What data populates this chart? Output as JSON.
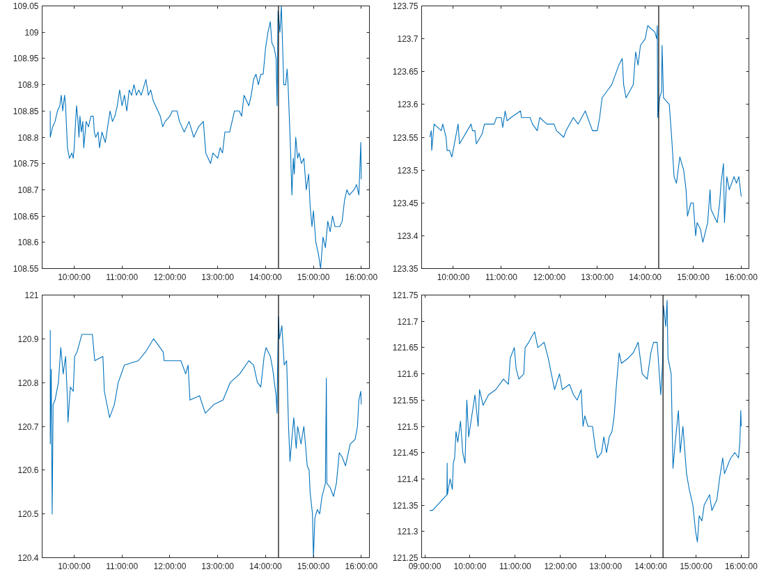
{
  "chart_data": [
    {
      "type": "line",
      "x": [
        9.5,
        9.5,
        9.55,
        9.6,
        9.65,
        9.7,
        9.73,
        9.76,
        9.8,
        9.82,
        9.84,
        9.86,
        9.9,
        9.95,
        9.98,
        10.0,
        10.03,
        10.05,
        10.08,
        10.1,
        10.12,
        10.15,
        10.18,
        10.2,
        10.25,
        10.3,
        10.35,
        10.4,
        10.42,
        10.45,
        10.5,
        10.53,
        10.58,
        10.65,
        10.7,
        10.75,
        10.8,
        10.85,
        10.9,
        10.95,
        11.0,
        11.05,
        11.1,
        11.15,
        11.2,
        11.25,
        11.3,
        11.35,
        11.4,
        11.5,
        11.55,
        11.6,
        11.65,
        11.7,
        11.8,
        11.85,
        11.9,
        12.0,
        12.05,
        12.15,
        12.2,
        12.3,
        12.4,
        12.5,
        12.6,
        12.7,
        12.75,
        12.8,
        12.85,
        12.9,
        13.0,
        13.05,
        13.1,
        13.15,
        13.25,
        13.3,
        13.35,
        13.45,
        13.5,
        13.55,
        13.65,
        13.7,
        13.75,
        13.8,
        13.85,
        13.9,
        13.95,
        14.0,
        14.05,
        14.1,
        14.13,
        14.18,
        14.22,
        14.24,
        14.26,
        14.28,
        14.3,
        14.33,
        14.38,
        14.42,
        14.45,
        14.47,
        14.52,
        14.55,
        14.58,
        14.6,
        14.63,
        14.67,
        14.7,
        14.75,
        14.8,
        14.85,
        14.9,
        14.93,
        14.97,
        15.0,
        15.05,
        15.1,
        15.15,
        15.2,
        15.25,
        15.3,
        15.35,
        15.4,
        15.45,
        15.55,
        15.6,
        15.65,
        15.7,
        15.75,
        15.85,
        15.9,
        15.95,
        15.97,
        15.99,
        16.0
      ],
      "series": [
        {
          "color": "#0072bd",
          "values": [
            108.85,
            108.8,
            108.82,
            108.83,
            108.85,
            108.86,
            108.88,
            108.85,
            108.88,
            108.86,
            108.82,
            108.78,
            108.76,
            108.77,
            108.76,
            108.78,
            108.83,
            108.86,
            108.83,
            108.8,
            108.84,
            108.81,
            108.83,
            108.78,
            108.83,
            108.82,
            108.84,
            108.84,
            108.81,
            108.8,
            108.81,
            108.78,
            108.81,
            108.79,
            108.82,
            108.85,
            108.83,
            108.84,
            108.86,
            108.89,
            108.86,
            108.88,
            108.85,
            108.89,
            108.88,
            108.9,
            108.88,
            108.89,
            108.88,
            108.91,
            108.88,
            108.89,
            108.87,
            108.86,
            108.84,
            108.82,
            108.83,
            108.84,
            108.85,
            108.85,
            108.83,
            108.81,
            108.83,
            108.8,
            108.82,
            108.83,
            108.77,
            108.76,
            108.75,
            108.77,
            108.76,
            108.78,
            108.77,
            108.81,
            108.81,
            108.83,
            108.85,
            108.85,
            108.84,
            108.88,
            108.86,
            108.88,
            108.91,
            108.92,
            108.9,
            108.92,
            108.92,
            108.97,
            109.0,
            109.02,
            108.98,
            108.97,
            108.95,
            108.86,
            109.04,
            109.02,
            109.0,
            109.05,
            108.9,
            108.9,
            108.93,
            108.9,
            108.78,
            108.69,
            108.76,
            108.73,
            108.8,
            108.76,
            108.77,
            108.75,
            108.76,
            108.7,
            108.73,
            108.67,
            108.63,
            108.66,
            108.6,
            108.58,
            108.55,
            108.61,
            108.59,
            108.64,
            108.62,
            108.65,
            108.63,
            108.63,
            108.64,
            108.68,
            108.7,
            108.69,
            108.7,
            108.71,
            108.69,
            108.74,
            108.79,
            108.72
          ]
        }
      ],
      "xlim": [
        9.33,
        16.17
      ],
      "ylim": [
        108.55,
        109.05
      ],
      "xticks": [
        {
          "value": 10,
          "label": "10:00:00"
        },
        {
          "value": 11,
          "label": "11:00:00"
        },
        {
          "value": 12,
          "label": "12:00:00"
        },
        {
          "value": 13,
          "label": "13:00:00"
        },
        {
          "value": 14,
          "label": "14:00:00"
        },
        {
          "value": 15,
          "label": "15:00:00"
        },
        {
          "value": 16,
          "label": "16:00:00"
        }
      ],
      "yticks": [
        108.55,
        108.6,
        108.65,
        108.7,
        108.75,
        108.8,
        108.85,
        108.9,
        108.95,
        109,
        109.05
      ],
      "ref_lines": [
        {
          "axis": "x",
          "value": 14.27,
          "color": "#000000"
        }
      ],
      "grid": false
    },
    {
      "type": "line",
      "x": [
        9.51,
        9.54,
        9.55,
        9.6,
        9.75,
        9.78,
        9.85,
        9.87,
        9.92,
        9.97,
        10.1,
        10.13,
        10.37,
        10.4,
        10.45,
        10.48,
        10.6,
        10.65,
        10.8,
        10.85,
        10.9,
        11.0,
        11.03,
        11.08,
        11.12,
        11.2,
        11.4,
        11.42,
        11.6,
        11.65,
        11.75,
        11.8,
        11.95,
        12.1,
        12.15,
        12.3,
        12.35,
        12.5,
        12.6,
        12.75,
        12.9,
        13.0,
        13.05,
        13.1,
        13.2,
        13.3,
        13.35,
        13.45,
        13.52,
        13.55,
        13.6,
        13.75,
        13.8,
        13.85,
        13.9,
        14.0,
        14.05,
        14.2,
        14.24,
        14.25,
        14.26,
        14.3,
        14.34,
        14.35,
        14.38,
        14.5,
        14.55,
        14.6,
        14.65,
        14.72,
        14.8,
        14.85,
        14.88,
        14.95,
        15.0,
        15.05,
        15.08,
        15.15,
        15.2,
        15.3,
        15.35,
        15.37,
        15.5,
        15.55,
        15.58,
        15.63,
        15.65,
        15.7,
        15.75,
        15.85,
        15.9,
        15.95,
        16.0
      ],
      "series": [
        {
          "color": "#0072bd",
          "values": [
            123.55,
            123.56,
            123.53,
            123.57,
            123.56,
            123.57,
            123.55,
            123.53,
            123.53,
            123.52,
            123.57,
            123.54,
            123.57,
            123.56,
            123.56,
            123.54,
            123.555,
            123.57,
            123.57,
            123.57,
            123.58,
            123.58,
            123.565,
            123.59,
            123.575,
            123.58,
            123.59,
            123.58,
            123.58,
            123.57,
            123.56,
            123.58,
            123.57,
            123.57,
            123.56,
            123.55,
            123.56,
            123.58,
            123.57,
            123.59,
            123.56,
            123.56,
            123.58,
            123.61,
            123.62,
            123.63,
            123.64,
            123.66,
            123.67,
            123.63,
            123.61,
            123.63,
            123.68,
            123.66,
            123.69,
            123.7,
            123.72,
            123.71,
            123.7,
            123.72,
            123.58,
            123.61,
            123.62,
            123.69,
            123.61,
            123.6,
            123.55,
            123.49,
            123.48,
            123.52,
            123.5,
            123.47,
            123.43,
            123.45,
            123.45,
            123.4,
            123.42,
            123.41,
            123.39,
            123.42,
            123.47,
            123.44,
            123.42,
            123.45,
            123.48,
            123.51,
            123.42,
            123.49,
            123.47,
            123.49,
            123.48,
            123.49,
            123.46
          ]
        }
      ],
      "xlim": [
        9.34,
        16.16
      ],
      "ylim": [
        123.35,
        123.75
      ],
      "xticks": [
        {
          "value": 10,
          "label": "10:00:00"
        },
        {
          "value": 11,
          "label": "11:00:00"
        },
        {
          "value": 12,
          "label": "12:00:00"
        },
        {
          "value": 13,
          "label": "13:00:00"
        },
        {
          "value": 14,
          "label": "14:00:00"
        },
        {
          "value": 15,
          "label": "15:00:00"
        },
        {
          "value": 16,
          "label": "16:00:00"
        }
      ],
      "yticks": [
        123.35,
        123.4,
        123.45,
        123.5,
        123.55,
        123.6,
        123.65,
        123.7,
        123.75
      ],
      "ref_lines": [
        {
          "axis": "x",
          "value": 14.28,
          "color": "#000000"
        }
      ],
      "grid": false
    },
    {
      "type": "line",
      "x": [
        9.5,
        9.5,
        9.52,
        9.54,
        9.56,
        9.6,
        9.67,
        9.72,
        9.77,
        9.82,
        9.86,
        9.87,
        9.92,
        9.98,
        10.01,
        10.06,
        10.16,
        10.38,
        10.43,
        10.6,
        10.63,
        10.74,
        10.84,
        10.92,
        11.05,
        11.34,
        11.49,
        11.66,
        11.86,
        11.88,
        12.23,
        12.33,
        12.38,
        12.42,
        12.62,
        12.74,
        12.92,
        13.11,
        13.26,
        13.46,
        13.65,
        13.75,
        13.83,
        13.9,
        13.97,
        14.01,
        14.1,
        14.15,
        14.22,
        14.24,
        14.25,
        14.27,
        14.29,
        14.34,
        14.39,
        14.44,
        14.48,
        14.51,
        14.54,
        14.59,
        14.64,
        14.67,
        14.74,
        14.8,
        14.84,
        14.87,
        14.91,
        14.93,
        14.98,
        15.0,
        15.03,
        15.08,
        15.13,
        15.18,
        15.25,
        15.27,
        15.28,
        15.35,
        15.42,
        15.48,
        15.54,
        15.6,
        15.67,
        15.77,
        15.87,
        15.92,
        15.95,
        15.99,
        16.0
      ],
      "series": [
        {
          "color": "#0072bd",
          "values": [
            120.92,
            120.66,
            120.83,
            120.5,
            120.75,
            120.76,
            120.8,
            120.88,
            120.82,
            120.86,
            120.76,
            120.71,
            120.79,
            120.78,
            120.86,
            120.87,
            120.91,
            120.91,
            120.85,
            120.86,
            120.78,
            120.72,
            120.75,
            120.8,
            120.84,
            120.85,
            120.87,
            120.9,
            120.87,
            120.85,
            120.85,
            120.82,
            120.84,
            120.76,
            120.77,
            120.73,
            120.75,
            120.76,
            120.8,
            120.82,
            120.85,
            120.84,
            120.8,
            120.79,
            120.86,
            120.88,
            120.86,
            120.83,
            120.77,
            120.73,
            120.83,
            120.95,
            120.9,
            120.93,
            120.84,
            120.85,
            120.7,
            120.62,
            120.66,
            120.72,
            120.65,
            120.7,
            120.66,
            120.7,
            120.65,
            120.61,
            120.6,
            120.55,
            120.5,
            120.4,
            120.49,
            120.51,
            120.5,
            120.54,
            120.57,
            120.81,
            120.57,
            120.56,
            120.54,
            120.57,
            120.64,
            120.63,
            120.61,
            120.66,
            120.67,
            120.7,
            120.76,
            120.78,
            120.75
          ]
        }
      ],
      "xlim": [
        9.33,
        16.17
      ],
      "ylim": [
        120.4,
        121
      ],
      "xticks": [
        {
          "value": 10,
          "label": "10:00:00"
        },
        {
          "value": 11,
          "label": "11:00:00"
        },
        {
          "value": 12,
          "label": "12:00:00"
        },
        {
          "value": 13,
          "label": "13:00:00"
        },
        {
          "value": 14,
          "label": "14:00:00"
        },
        {
          "value": 15,
          "label": "15:00:00"
        },
        {
          "value": 16,
          "label": "16:00:00"
        }
      ],
      "yticks": [
        120.4,
        120.5,
        120.6,
        120.7,
        120.8,
        120.9,
        121
      ],
      "ref_lines": [
        {
          "axis": "x",
          "value": 14.27,
          "color": "#000000"
        }
      ],
      "grid": false
    },
    {
      "type": "line",
      "x": [
        9.11,
        9.17,
        9.49,
        9.495,
        9.5,
        9.56,
        9.61,
        9.63,
        9.66,
        9.69,
        9.73,
        9.79,
        9.84,
        9.89,
        9.93,
        9.97,
        10.04,
        10.11,
        10.18,
        10.21,
        10.29,
        10.41,
        10.57,
        10.74,
        10.85,
        10.89,
        10.98,
        11.02,
        11.08,
        11.19,
        11.22,
        11.3,
        11.36,
        11.43,
        11.5,
        11.64,
        11.73,
        11.8,
        11.87,
        11.98,
        12.04,
        12.2,
        12.29,
        12.37,
        12.46,
        12.5,
        12.54,
        12.61,
        12.71,
        12.77,
        12.82,
        12.91,
        12.96,
        13.02,
        13.08,
        13.14,
        13.19,
        13.24,
        13.3,
        13.35,
        13.5,
        13.61,
        13.72,
        13.81,
        13.92,
        14.0,
        14.06,
        14.14,
        14.22,
        14.26,
        14.28,
        14.33,
        14.36,
        14.38,
        14.45,
        14.49,
        14.54,
        14.61,
        14.65,
        14.71,
        14.79,
        14.85,
        14.93,
        14.99,
        15.03,
        15.07,
        15.13,
        15.18,
        15.24,
        15.3,
        15.35,
        15.46,
        15.52,
        15.59,
        15.63,
        15.72,
        15.77,
        15.86,
        15.94,
        15.97,
        15.99,
        16.0
      ],
      "series": [
        {
          "color": "#0072bd",
          "values": [
            121.34,
            121.34,
            121.37,
            121.43,
            121.37,
            121.4,
            121.38,
            121.43,
            121.44,
            121.49,
            121.47,
            121.51,
            121.45,
            121.43,
            121.55,
            121.48,
            121.52,
            121.56,
            121.5,
            121.57,
            121.54,
            121.56,
            121.57,
            121.59,
            121.58,
            121.63,
            121.65,
            121.61,
            121.59,
            121.6,
            121.65,
            121.66,
            121.67,
            121.68,
            121.65,
            121.66,
            121.63,
            121.6,
            121.57,
            121.6,
            121.57,
            121.58,
            121.56,
            121.55,
            121.57,
            121.5,
            121.52,
            121.5,
            121.5,
            121.46,
            121.44,
            121.45,
            121.48,
            121.45,
            121.48,
            121.49,
            121.52,
            121.58,
            121.64,
            121.62,
            121.63,
            121.64,
            121.66,
            121.6,
            121.59,
            121.64,
            121.66,
            121.66,
            121.56,
            121.62,
            121.73,
            121.69,
            121.74,
            121.63,
            121.6,
            121.42,
            121.47,
            121.53,
            121.45,
            121.5,
            121.41,
            121.38,
            121.35,
            121.3,
            121.28,
            121.33,
            121.32,
            121.35,
            121.36,
            121.37,
            121.34,
            121.36,
            121.4,
            121.44,
            121.41,
            121.43,
            121.44,
            121.45,
            121.44,
            121.47,
            121.53,
            121.5
          ]
        }
      ],
      "xlim": [
        8.93,
        16.17
      ],
      "ylim": [
        121.25,
        121.75
      ],
      "xticks": [
        {
          "value": 9,
          "label": "09:00:00"
        },
        {
          "value": 10,
          "label": "10:00:00"
        },
        {
          "value": 11,
          "label": "11:00:00"
        },
        {
          "value": 12,
          "label": "12:00:00"
        },
        {
          "value": 13,
          "label": "13:00:00"
        },
        {
          "value": 14,
          "label": "14:00:00"
        },
        {
          "value": 15,
          "label": "15:00:00"
        },
        {
          "value": 16,
          "label": "16:00:00"
        }
      ],
      "yticks": [
        121.25,
        121.3,
        121.35,
        121.4,
        121.45,
        121.5,
        121.55,
        121.6,
        121.65,
        121.7,
        121.75
      ],
      "ref_lines": [
        {
          "axis": "x",
          "value": 14.27,
          "color": "#000000"
        }
      ],
      "grid": false
    }
  ]
}
